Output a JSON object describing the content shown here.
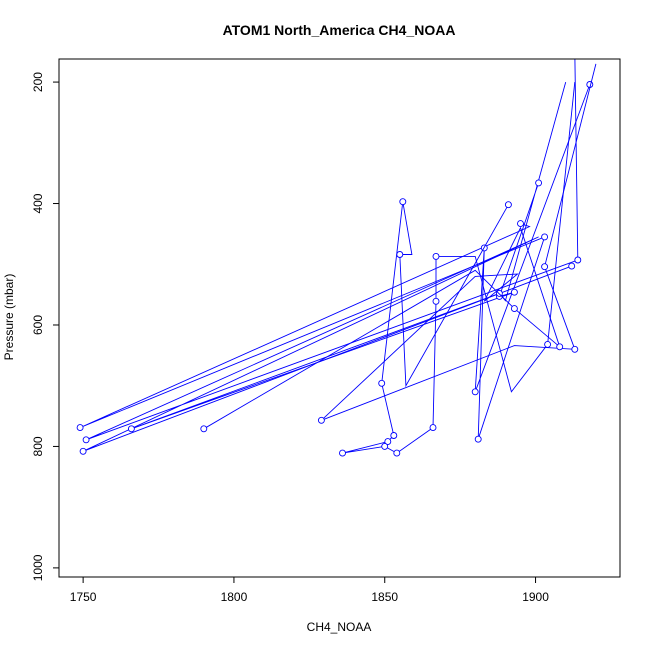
{
  "chart_data": {
    "type": "line",
    "title": "ATOM1 North_America CH4_NOAA",
    "xlabel": "CH4_NOAA",
    "ylabel": "Pressure (mbar)",
    "xlim": [
      1742,
      1928
    ],
    "ylim": [
      1015,
      162
    ],
    "y_reversed": true,
    "grid": false,
    "line_color": "#0000ff",
    "marker": "open-circle",
    "x_ticks": [
      1750,
      1800,
      1850,
      1900
    ],
    "y_ticks": [
      200,
      400,
      600,
      800,
      1000
    ],
    "x_tick_labels": [
      "1750",
      "1800",
      "1850",
      "1900"
    ],
    "y_tick_labels": [
      "200",
      "400",
      "600",
      "800",
      "1000"
    ],
    "clip_top": true,
    "series": [
      {
        "x": [
          1913,
          1914,
          1751,
          1901,
          1750,
          1912
        ],
        "y": [
          150,
          493,
          789,
          455,
          808,
          503
        ],
        "marked": [
          false,
          true,
          true,
          false,
          true,
          true
        ]
      },
      {
        "x": [
          1918,
          1880,
          1883,
          1881,
          1903,
          1749,
          1898,
          1895
        ],
        "y": [
          204,
          710,
          473,
          788,
          455,
          769,
          438,
          433
        ],
        "marked": [
          true,
          true,
          true,
          true,
          true,
          true,
          false,
          true
        ]
      },
      {
        "x": [
          1901,
          1888,
          1893,
          1766,
          1888,
          1890,
          1910
        ],
        "y": [
          366,
          553,
          546,
          771,
          548,
          560,
          200
        ],
        "marked": [
          true,
          true,
          true,
          true,
          true,
          false,
          false
        ]
      },
      {
        "x": [
          1891,
          1857,
          1855,
          1859,
          1856,
          1849,
          1853,
          1851,
          1836,
          1850,
          1854,
          1866,
          1867,
          1867,
          1880,
          1892,
          1904,
          1913
        ],
        "y": [
          402,
          700,
          484,
          484,
          397,
          696,
          782,
          792,
          811,
          800,
          811,
          769,
          561,
          487,
          487,
          710,
          632,
          200
        ],
        "marked": [
          true,
          false,
          true,
          false,
          true,
          true,
          true,
          true,
          true,
          true,
          true,
          true,
          true,
          true,
          false,
          false,
          true,
          false
        ]
      },
      {
        "x": [
          1790,
          1880,
          1893,
          1908,
          1895,
          1883,
          1894,
          1880,
          1829,
          1893,
          1913,
          1903,
          1920
        ],
        "y": [
          771,
          510,
          573,
          636,
          440,
          561,
          516,
          520,
          757,
          634,
          640,
          504,
          170
        ],
        "marked": [
          true,
          false,
          true,
          true,
          false,
          false,
          false,
          false,
          true,
          false,
          true,
          true,
          false
        ]
      }
    ]
  }
}
